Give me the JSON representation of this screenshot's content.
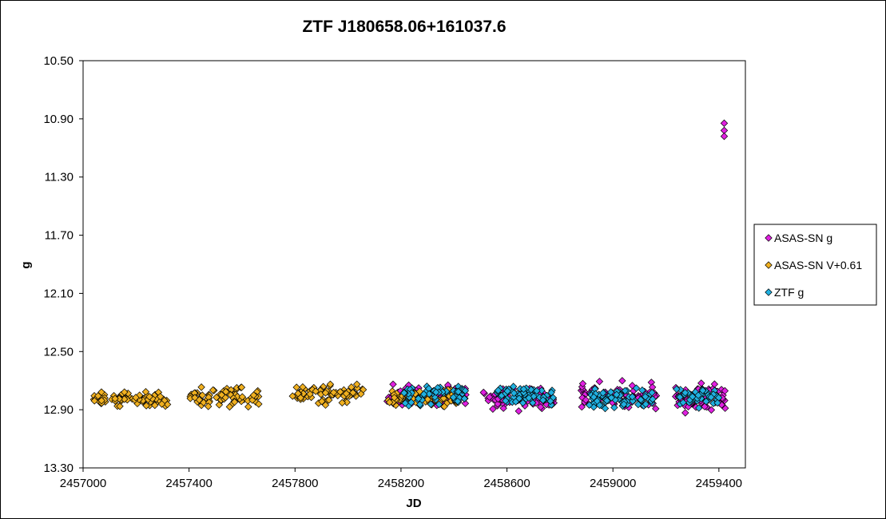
{
  "chart_data": {
    "type": "scatter",
    "title": "ZTF J180658.06+161037.6",
    "xlabel": "JD",
    "ylabel": "g",
    "xlim": [
      2457000,
      2459500
    ],
    "ylim": [
      10.5,
      13.3
    ],
    "y_inverted": true,
    "x_ticks": [
      2457000,
      2457400,
      2457800,
      2458200,
      2458600,
      2459000,
      2459400
    ],
    "x_tick_labels": [
      "2457000",
      "2457400",
      "2457800",
      "2458200",
      "2458600",
      "2459000",
      "2459400"
    ],
    "y_ticks": [
      10.5,
      10.9,
      11.3,
      11.7,
      12.1,
      12.5,
      12.9,
      13.3
    ],
    "y_tick_labels": [
      "10.50",
      "10.90",
      "11.30",
      "11.70",
      "12.10",
      "12.50",
      "12.90",
      "13.30"
    ],
    "grid": false,
    "legend_position": "right",
    "series": [
      {
        "name": "ASAS-SN g",
        "color": "#e020e0",
        "marker": "diamond",
        "segments": [
          {
            "x_start": 2458140,
            "x_end": 2458450,
            "y_min": 12.7,
            "y_max": 12.9
          },
          {
            "x_start": 2458510,
            "x_end": 2458780,
            "y_min": 12.72,
            "y_max": 12.93
          },
          {
            "x_start": 2458880,
            "x_end": 2459170,
            "y_min": 12.68,
            "y_max": 12.94
          },
          {
            "x_start": 2459220,
            "x_end": 2459430,
            "y_min": 12.7,
            "y_max": 12.95
          }
        ],
        "points": [
          {
            "x": 2459420,
            "y": 10.93
          },
          {
            "x": 2459420,
            "y": 10.98
          },
          {
            "x": 2459420,
            "y": 11.02
          }
        ]
      },
      {
        "name": "ASAS-SN V+0.61",
        "color": "#f0b020",
        "marker": "diamond",
        "segments": [
          {
            "x_start": 2457030,
            "x_end": 2457320,
            "y_min": 12.76,
            "y_max": 12.9
          },
          {
            "x_start": 2457400,
            "x_end": 2457670,
            "y_min": 12.72,
            "y_max": 12.9
          },
          {
            "x_start": 2457790,
            "x_end": 2458060,
            "y_min": 12.7,
            "y_max": 12.88
          },
          {
            "x_start": 2458150,
            "x_end": 2458420,
            "y_min": 12.72,
            "y_max": 12.9
          }
        ]
      },
      {
        "name": "ZTF g",
        "color": "#20b0e0",
        "marker": "diamond",
        "segments": [
          {
            "x_start": 2458210,
            "x_end": 2458450,
            "y_min": 12.68,
            "y_max": 12.9
          },
          {
            "x_start": 2458560,
            "x_end": 2458780,
            "y_min": 12.7,
            "y_max": 12.9
          },
          {
            "x_start": 2458910,
            "x_end": 2459160,
            "y_min": 12.72,
            "y_max": 12.92
          },
          {
            "x_start": 2459240,
            "x_end": 2459400,
            "y_min": 12.72,
            "y_max": 12.9
          }
        ]
      }
    ]
  }
}
